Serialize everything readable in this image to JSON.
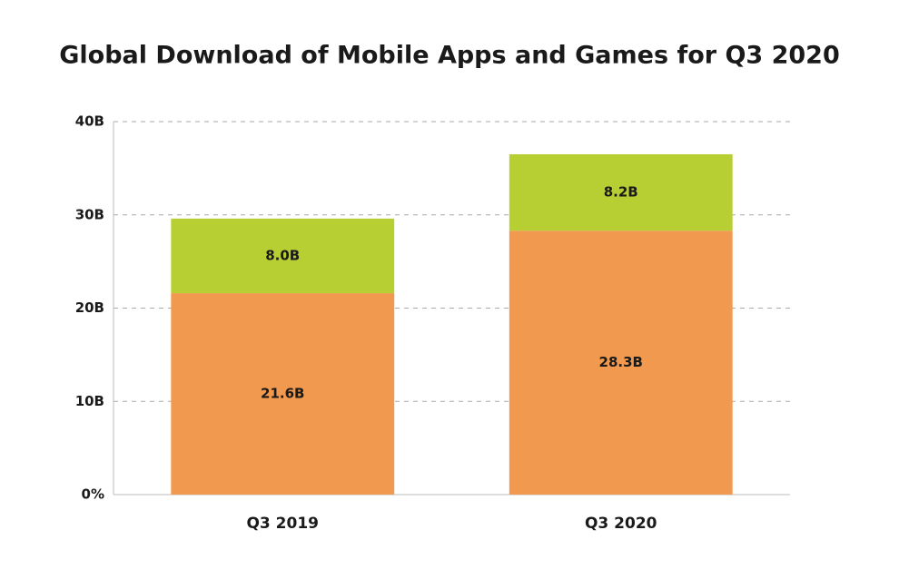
{
  "chart_data": {
    "type": "stacked_bar",
    "title": "Global Download of Mobile Apps and Games for Q3 2020",
    "categories": [
      "Q3 2019",
      "Q3 2020"
    ],
    "series": [
      {
        "color": "#f0994f",
        "values": [
          21.6,
          28.3
        ],
        "value_labels": [
          "21.6B",
          "28.3B"
        ]
      },
      {
        "color": "#b8cf33",
        "values": [
          8.0,
          8.2
        ],
        "value_labels": [
          "8.0B",
          "8.2B"
        ]
      }
    ],
    "ylim": [
      0,
      40
    ],
    "yticks": [
      {
        "value": 0,
        "label": "0%"
      },
      {
        "value": 10,
        "label": "10B"
      },
      {
        "value": 20,
        "label": "20B"
      },
      {
        "value": 30,
        "label": "30B"
      },
      {
        "value": 40,
        "label": "40B"
      }
    ],
    "grid": true
  }
}
